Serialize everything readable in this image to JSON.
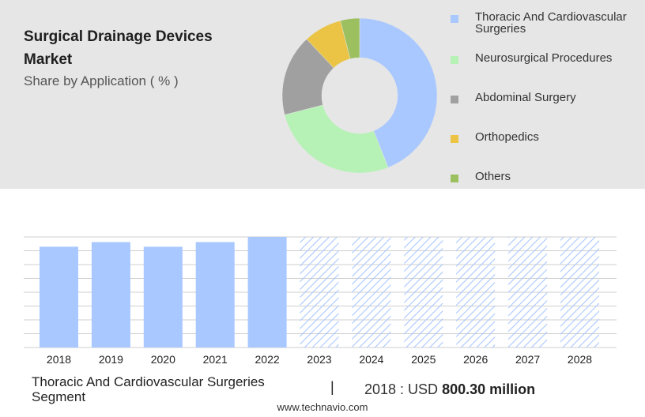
{
  "header": {
    "title": "Surgical Drainage Devices Market",
    "subtitle": "Share by Application ( % )"
  },
  "chart_data": [
    {
      "type": "pie",
      "donut": true,
      "categories": [
        "Thoracic And Cardiovascular Surgeries",
        "Neurosurgical Procedures",
        "Abdominal Surgery",
        "Orthopedics",
        "Others"
      ],
      "values": [
        44,
        27,
        17,
        8,
        4
      ],
      "colors": [
        "#a8c8ff",
        "#b6f2b6",
        "#a0a0a0",
        "#ebc445",
        "#9cc060"
      ],
      "legend_position": "right"
    },
    {
      "type": "bar",
      "categories": [
        "2018",
        "2019",
        "2020",
        "2021",
        "2022",
        "2023",
        "2024",
        "2025",
        "2026",
        "2027",
        "2028"
      ],
      "values": [
        800.3,
        837,
        800,
        837,
        878,
        878,
        878,
        878,
        878,
        878,
        878
      ],
      "forecast_from": "2023",
      "bar_color": "#a8c8ff",
      "grid": true,
      "ylim": [
        0,
        878
      ]
    }
  ],
  "footer": {
    "segment": "Thoracic And Cardiovascular Surgeries Segment",
    "separator": "|",
    "value_prefix": "2018 : USD",
    "value_bold": "800.30 million",
    "source": "www.technavio.com"
  }
}
